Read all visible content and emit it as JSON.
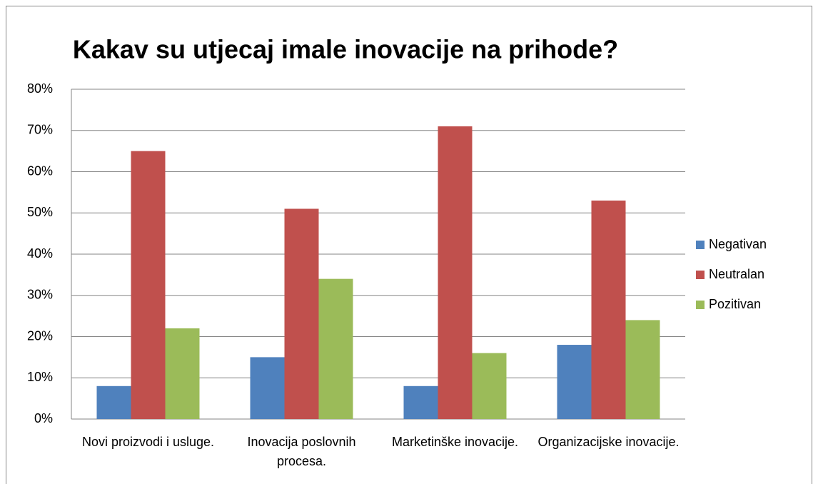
{
  "chart_data": {
    "type": "bar",
    "title": "Kakav su utjecaj imale inovacije na prihode?",
    "categories": [
      "Novi proizvodi i usluge.",
      "Inovacija poslovnih procesa.",
      "Marketinške inovacije.",
      "Organizacijske inovacije."
    ],
    "series": [
      {
        "name": "Negativan",
        "color": "#4f81bd",
        "values": [
          8,
          15,
          8,
          18
        ]
      },
      {
        "name": "Neutralan",
        "color": "#c0504d",
        "values": [
          65,
          51,
          71,
          53
        ]
      },
      {
        "name": "Pozitivan",
        "color": "#9bbb59",
        "values": [
          22,
          34,
          16,
          24
        ]
      }
    ],
    "ylim": [
      0,
      80
    ],
    "yticks": [
      {
        "value": 0,
        "label": "0%"
      },
      {
        "value": 10,
        "label": "10%"
      },
      {
        "value": 20,
        "label": "20%"
      },
      {
        "value": 30,
        "label": "30%"
      },
      {
        "value": 40,
        "label": "40%"
      },
      {
        "value": 50,
        "label": "50%"
      },
      {
        "value": 60,
        "label": "60%"
      },
      {
        "value": 70,
        "label": "70%"
      },
      {
        "value": 80,
        "label": "80%"
      }
    ],
    "grid": true,
    "legend": "right"
  }
}
